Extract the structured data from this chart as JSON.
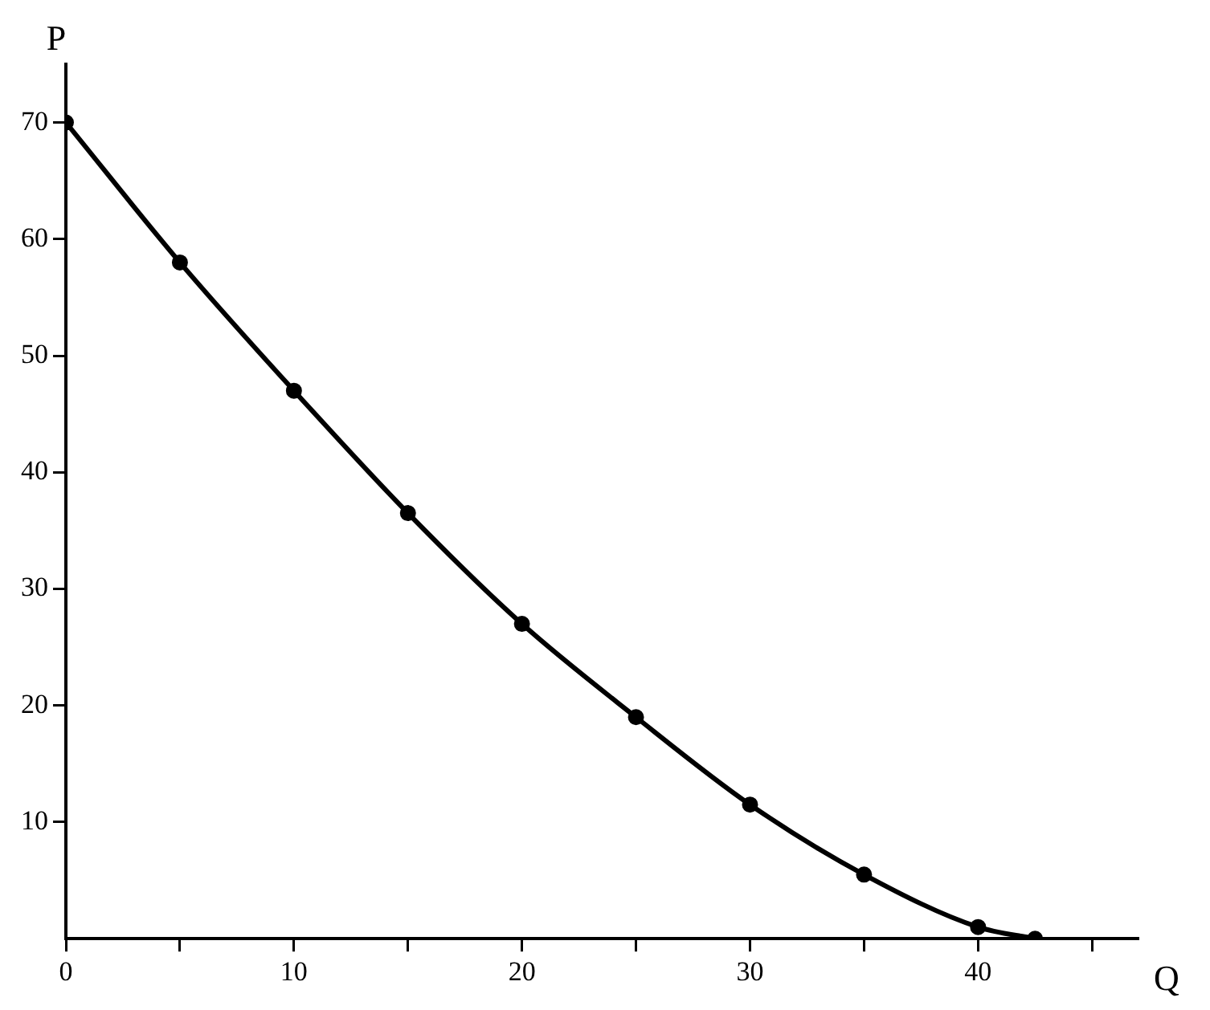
{
  "chart_data": {
    "type": "line",
    "xlabel": "Q",
    "ylabel": "P",
    "x": [
      0,
      5,
      10,
      15,
      20,
      25,
      30,
      35,
      40,
      42.5
    ],
    "series": [
      {
        "color": "#000000",
        "values": [
          70,
          58,
          47,
          36.5,
          27,
          19,
          11.5,
          5.5,
          1,
          0
        ]
      }
    ],
    "xlim": [
      0,
      47
    ],
    "ylim": [
      0,
      75
    ],
    "xticks": [
      0,
      {
        "value": 5,
        "label": null
      },
      10,
      {
        "value": 15,
        "label": null
      },
      20,
      {
        "value": 25,
        "label": null
      },
      30,
      {
        "value": 35,
        "label": null
      },
      40,
      {
        "value": 45,
        "label": null
      }
    ],
    "yticks": [
      10,
      20,
      30,
      40,
      50,
      60,
      70
    ],
    "grid": false,
    "legend": false,
    "marker": "circle",
    "line_style": "solid"
  }
}
